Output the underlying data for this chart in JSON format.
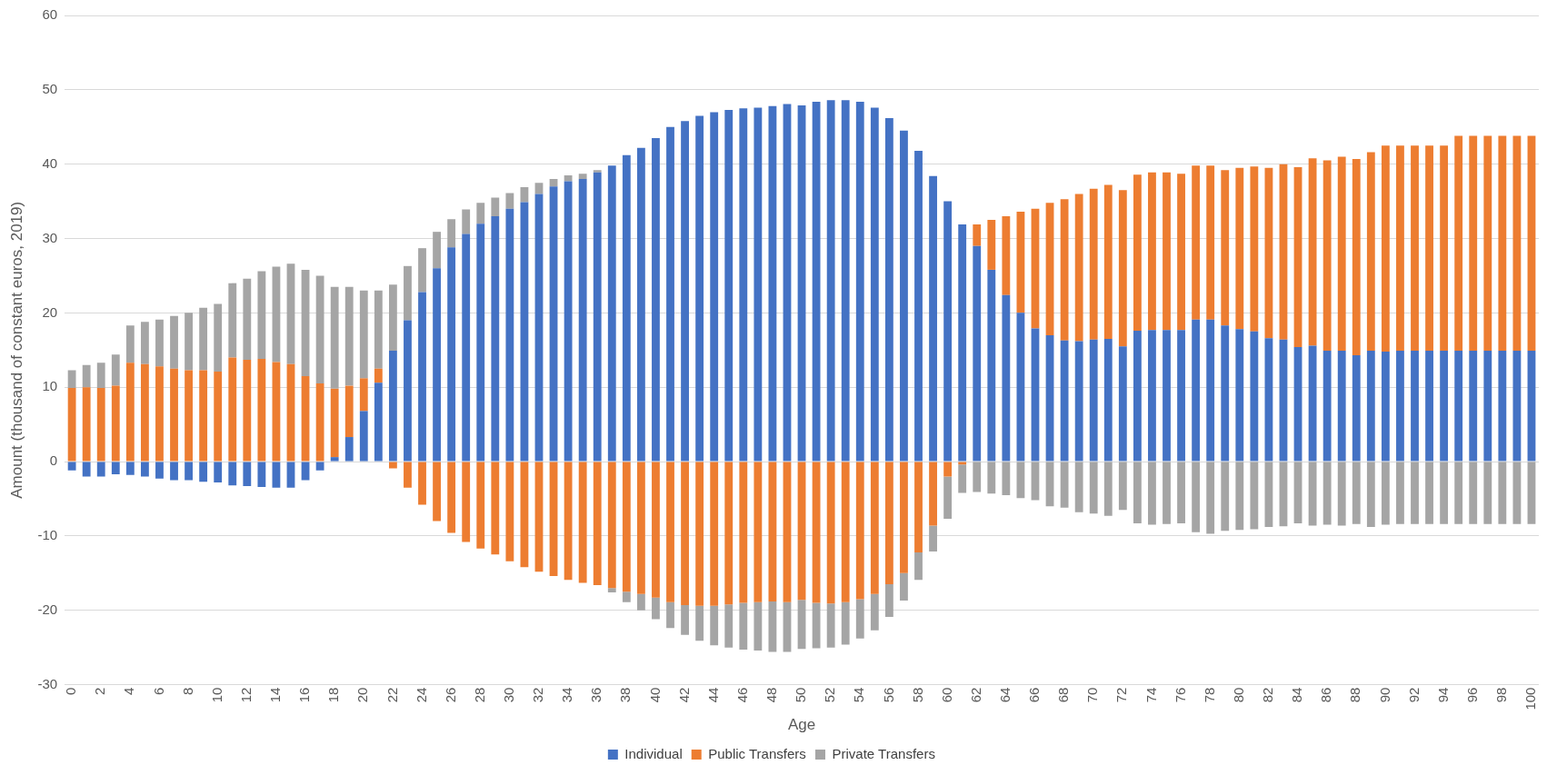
{
  "chart_data": {
    "type": "bar",
    "stacked": true,
    "xlabel": "Age",
    "ylabel": "Amount (thousand of constant euros, 2019)",
    "categories": [
      "0",
      null,
      "2",
      null,
      "4",
      null,
      "6",
      null,
      "8",
      null,
      "10",
      null,
      "12",
      null,
      "14",
      null,
      "16",
      null,
      "18",
      null,
      "20",
      null,
      "22",
      null,
      "24",
      null,
      "26",
      null,
      "28",
      null,
      "30",
      null,
      "32",
      null,
      "34",
      null,
      "36",
      null,
      "38",
      null,
      "40",
      null,
      "42",
      null,
      "44",
      null,
      "46",
      null,
      "48",
      null,
      "50",
      null,
      "52",
      null,
      "54",
      null,
      "56",
      null,
      "58",
      null,
      "60",
      null,
      "62",
      null,
      "64",
      null,
      "66",
      null,
      "68",
      null,
      "70",
      null,
      "72",
      null,
      "74",
      null,
      "76",
      null,
      "78",
      null,
      "80",
      null,
      "82",
      null,
      "84",
      null,
      "86",
      null,
      "88",
      null,
      "90",
      null,
      "92",
      null,
      "94",
      null,
      "96",
      null,
      "98",
      null,
      "100"
    ],
    "series": [
      {
        "name": "Individual",
        "color": "#4472c4",
        "values": [
          -1.2,
          -2.0,
          -2.0,
          -1.7,
          -1.8,
          -2.0,
          -2.3,
          -2.5,
          -2.5,
          -2.7,
          -2.8,
          -3.2,
          -3.3,
          -3.4,
          -3.5,
          -3.5,
          -2.5,
          -1.2,
          0.6,
          3.3,
          6.8,
          10.6,
          14.9,
          19.0,
          22.8,
          26.0,
          28.8,
          30.6,
          32.0,
          33.0,
          34.0,
          34.9,
          36.0,
          37.0,
          37.7,
          38.0,
          38.9,
          39.8,
          41.2,
          42.2,
          43.5,
          45.0,
          45.8,
          46.5,
          47.0,
          47.3,
          47.5,
          47.6,
          47.8,
          48.1,
          47.9,
          48.4,
          48.6,
          48.6,
          48.4,
          47.6,
          46.2,
          44.5,
          41.8,
          38.4,
          35.0,
          31.9,
          29.0,
          25.8,
          22.4,
          20.0,
          17.9,
          17.0,
          16.3,
          16.2,
          16.4,
          16.5,
          15.5,
          17.6,
          17.7,
          17.7,
          17.7,
          19.1,
          19.1,
          18.3,
          17.8,
          17.5,
          16.6,
          16.4,
          15.4,
          15.6,
          14.9,
          14.9,
          14.3,
          14.9,
          14.8,
          14.9,
          14.9,
          14.9,
          14.9,
          14.9,
          14.9,
          14.9,
          14.9,
          14.9,
          14.9
        ]
      },
      {
        "name": "Public Transfers",
        "color": "#ed7d31",
        "values": [
          9.9,
          10.0,
          9.9,
          10.2,
          13.3,
          13.1,
          12.8,
          12.5,
          12.3,
          12.3,
          12.1,
          14.0,
          13.7,
          13.8,
          13.4,
          13.1,
          11.5,
          10.5,
          9.2,
          6.9,
          4.4,
          1.9,
          -0.9,
          -3.5,
          -5.8,
          -8.0,
          -9.6,
          -10.8,
          -11.7,
          -12.5,
          -13.4,
          -14.2,
          -14.8,
          -15.4,
          -15.9,
          -16.3,
          -16.6,
          -17.0,
          -17.5,
          -17.8,
          -18.3,
          -18.9,
          -19.3,
          -19.4,
          -19.4,
          -19.2,
          -19.0,
          -18.9,
          -18.8,
          -18.9,
          -18.6,
          -19.0,
          -19.1,
          -18.9,
          -18.5,
          -17.8,
          -16.5,
          -15.0,
          -12.2,
          -8.6,
          -2.0,
          -0.4,
          2.9,
          6.7,
          10.6,
          13.6,
          16.1,
          17.8,
          19.0,
          19.8,
          20.3,
          20.7,
          21.0,
          21.0,
          21.2,
          21.2,
          21.0,
          20.7,
          20.7,
          20.9,
          21.7,
          22.2,
          22.9,
          23.6,
          24.2,
          25.2,
          25.6,
          26.1,
          26.4,
          26.7,
          27.7,
          27.6,
          27.6,
          27.6,
          27.6,
          28.9,
          28.9,
          28.9,
          28.9,
          28.9,
          28.9
        ]
      },
      {
        "name": "Private Transfers",
        "color": "#a5a5a5",
        "values": [
          2.4,
          3.0,
          3.4,
          4.2,
          5.0,
          5.7,
          6.3,
          7.1,
          7.7,
          8.4,
          9.1,
          10.0,
          10.9,
          11.8,
          12.8,
          13.5,
          14.3,
          14.5,
          13.7,
          13.3,
          11.8,
          10.5,
          8.9,
          7.3,
          5.9,
          4.9,
          3.8,
          3.3,
          2.8,
          2.5,
          2.1,
          2.0,
          1.5,
          1.0,
          0.8,
          0.7,
          0.3,
          -0.6,
          -1.4,
          -2.2,
          -2.9,
          -3.5,
          -4.0,
          -4.7,
          -5.3,
          -5.8,
          -6.3,
          -6.5,
          -6.8,
          -6.7,
          -6.6,
          -6.1,
          -5.9,
          -5.7,
          -5.3,
          -4.9,
          -4.4,
          -3.7,
          -3.7,
          -3.5,
          -5.7,
          -3.8,
          -4.1,
          -4.3,
          -4.5,
          -4.9,
          -5.2,
          -6.0,
          -6.2,
          -6.8,
          -7.0,
          -7.3,
          -6.5,
          -8.3,
          -8.5,
          -8.4,
          -8.3,
          -9.5,
          -9.7,
          -9.3,
          -9.2,
          -9.1,
          -8.8,
          -8.7,
          -8.3,
          -8.6,
          -8.5,
          -8.6,
          -8.4,
          -8.8,
          -8.5,
          -8.4,
          -8.4,
          -8.4,
          -8.4,
          -8.4,
          -8.4,
          -8.4,
          -8.4,
          -8.4,
          -8.4
        ]
      }
    ],
    "ylim": [
      -30,
      60
    ],
    "yticks": [
      -30,
      -20,
      -10,
      0,
      10,
      20,
      30,
      40,
      50,
      60
    ],
    "grid": "y",
    "legend": "bottom"
  }
}
